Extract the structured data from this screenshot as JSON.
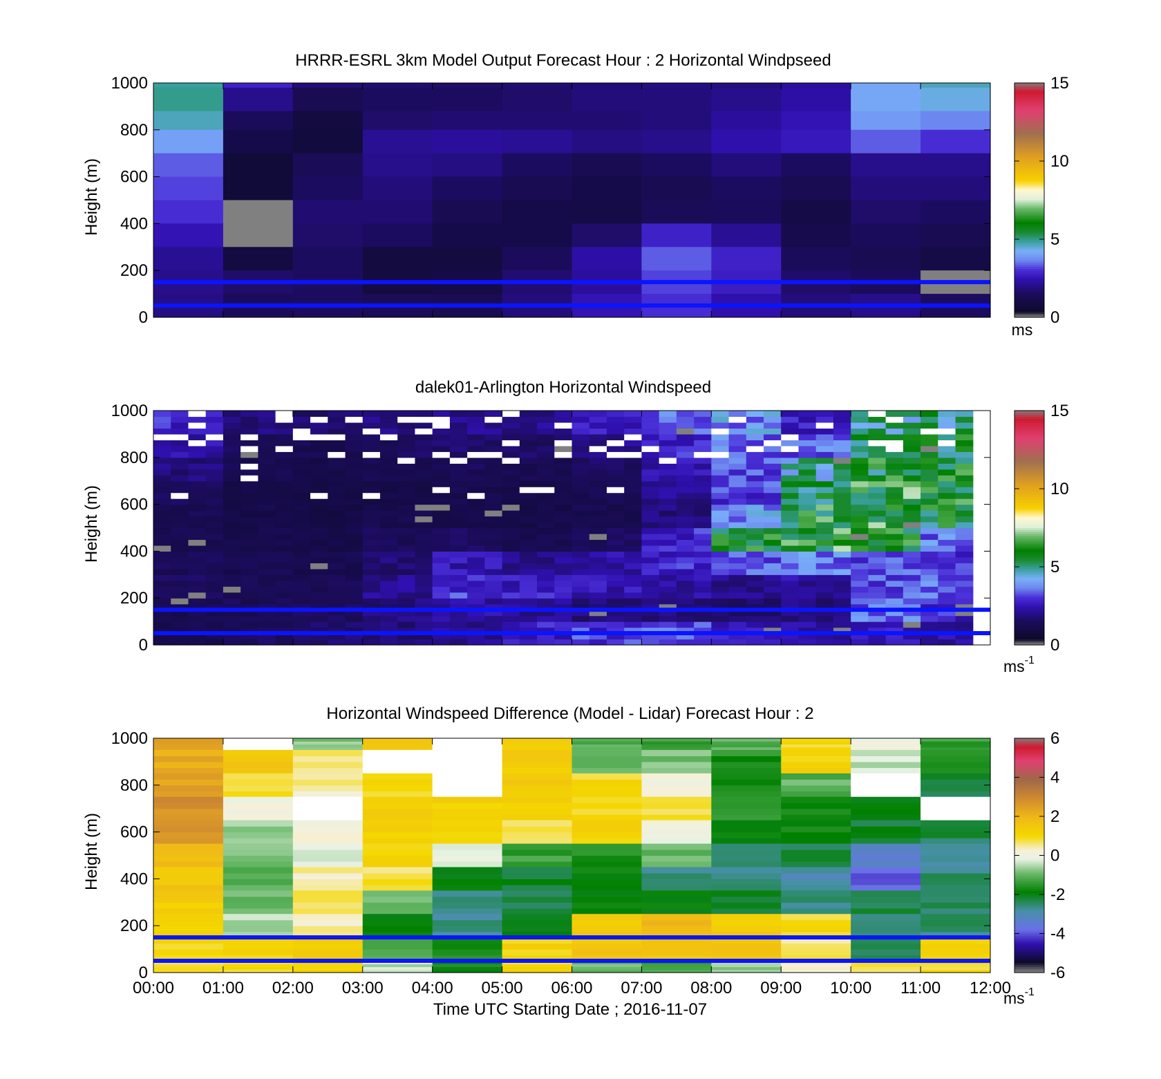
{
  "chart_data": [
    {
      "type": "heatmap",
      "title": "HRRR-ESRL 3km Model Output   Forecast Hour : 2 Horizontal Windpseed",
      "ylabel": "Height (m)",
      "xlabel": "",
      "ylim": [
        0,
        1000
      ],
      "yticks": [
        "0",
        "200",
        "400",
        "600",
        "800",
        "1000"
      ],
      "xlim": [
        0,
        12
      ],
      "colorbar": {
        "range": [
          0,
          15
        ],
        "ticks": [
          "0",
          "5",
          "10",
          "15"
        ],
        "unit": "ms",
        "unit_sup": "",
        "colormap": "speed"
      },
      "reference_lines_m": [
        50,
        150
      ],
      "x_bins": [
        0,
        1,
        2,
        3,
        4,
        5,
        6,
        7,
        8,
        9,
        10,
        11
      ],
      "height_bins_m": [
        [
          980,
          1000
        ],
        [
          880,
          980
        ],
        [
          800,
          880
        ],
        [
          700,
          800
        ],
        [
          600,
          700
        ],
        [
          500,
          600
        ],
        [
          400,
          500
        ],
        [
          300,
          400
        ],
        [
          200,
          300
        ],
        [
          100,
          200
        ],
        [
          0,
          100
        ]
      ],
      "values_ms": [
        [
          4.8,
          2.6,
          1.6,
          1.5,
          1.4,
          1.5,
          1.6,
          1.7,
          1.7,
          2.0,
          4.0,
          4.6
        ],
        [
          4.9,
          1.8,
          1.0,
          1.3,
          1.3,
          1.4,
          1.6,
          1.6,
          1.8,
          2.1,
          4.0,
          4.3
        ],
        [
          4.6,
          1.2,
          0.6,
          1.4,
          1.5,
          1.5,
          1.5,
          1.6,
          2.0,
          2.3,
          3.8,
          3.5
        ],
        [
          3.9,
          0.8,
          0.5,
          1.9,
          2.0,
          1.9,
          1.7,
          1.8,
          2.2,
          2.4,
          3.2,
          2.8
        ],
        [
          3.2,
          0.4,
          1.1,
          1.8,
          1.7,
          1.3,
          1.0,
          1.3,
          1.6,
          1.3,
          1.8,
          1.8
        ],
        [
          3.0,
          0.4,
          1.3,
          1.6,
          1.3,
          1.0,
          0.8,
          1.0,
          1.3,
          1.0,
          1.6,
          1.6
        ],
        [
          2.8,
          null,
          1.5,
          1.5,
          1.0,
          0.8,
          0.7,
          1.1,
          1.2,
          0.7,
          1.4,
          1.3
        ],
        [
          2.3,
          null,
          1.4,
          1.3,
          0.8,
          0.8,
          1.4,
          2.6,
          1.9,
          0.9,
          1.2,
          1.0
        ],
        [
          1.9,
          0.6,
          1.3,
          0.6,
          0.6,
          1.2,
          2.1,
          3.2,
          2.6,
          1.2,
          1.0,
          0.7
        ],
        [
          1.8,
          1.4,
          1.3,
          0.6,
          0.7,
          1.5,
          2.0,
          3.0,
          2.5,
          1.4,
          1.2,
          null
        ],
        [
          1.7,
          1.2,
          1.3,
          1.1,
          1.0,
          1.6,
          2.3,
          2.8,
          2.2,
          1.6,
          1.8,
          1.3
        ]
      ]
    },
    {
      "type": "heatmap",
      "title": "dalek01-Arlington  Horizontal Windspeed",
      "ylabel": "Height (m)",
      "xlabel": "",
      "ylim": [
        0,
        1000
      ],
      "yticks": [
        "0",
        "200",
        "400",
        "600",
        "800",
        "1000"
      ],
      "xlim": [
        0,
        12
      ],
      "colorbar": {
        "range": [
          0,
          15
        ],
        "ticks": [
          "0",
          "5",
          "10",
          "15"
        ],
        "unit": "ms",
        "unit_sup": "-1",
        "colormap": "speed"
      },
      "reference_lines_m": [
        50,
        150
      ],
      "profile_interval_h": 0.25,
      "height_bins_m": [
        [
          900,
          1000
        ],
        [
          800,
          900
        ],
        [
          700,
          800
        ],
        [
          600,
          700
        ],
        [
          500,
          600
        ],
        [
          400,
          500
        ],
        [
          300,
          400
        ],
        [
          200,
          300
        ],
        [
          100,
          200
        ],
        [
          0,
          100
        ]
      ],
      "hourly_speed_ms_approx": [
        [
          2.6,
          1.6,
          1.4,
          1.6,
          1.8,
          1.8,
          2.4,
          3.2,
          3.6,
          2.4,
          4.6,
          5.0
        ],
        [
          2.2,
          1.2,
          1.0,
          1.2,
          1.4,
          1.3,
          1.8,
          2.6,
          3.3,
          3.2,
          5.2,
          5.6
        ],
        [
          1.6,
          1.0,
          0.8,
          1.0,
          1.1,
          1.0,
          1.3,
          2.2,
          3.0,
          4.6,
          5.6,
          5.8
        ],
        [
          1.2,
          0.8,
          0.7,
          0.8,
          0.9,
          0.8,
          1.0,
          1.8,
          2.8,
          5.4,
          6.0,
          5.8
        ],
        [
          1.0,
          0.8,
          0.7,
          0.9,
          0.8,
          0.8,
          0.9,
          1.6,
          3.6,
          5.8,
          6.0,
          5.6
        ],
        [
          1.0,
          0.9,
          0.8,
          1.1,
          1.2,
          1.0,
          1.2,
          2.6,
          5.6,
          6.0,
          5.6,
          3.4
        ],
        [
          1.1,
          1.0,
          0.9,
          1.5,
          2.2,
          1.8,
          2.0,
          2.6,
          3.0,
          3.4,
          3.0,
          2.8
        ],
        [
          1.2,
          1.0,
          1.1,
          1.8,
          2.8,
          2.4,
          2.2,
          2.0,
          1.8,
          2.0,
          3.0,
          3.2
        ],
        [
          1.0,
          1.1,
          1.2,
          1.6,
          2.0,
          1.8,
          1.6,
          1.6,
          1.4,
          1.6,
          3.2,
          2.6
        ],
        [
          0.9,
          1.2,
          1.4,
          1.5,
          1.8,
          2.4,
          2.8,
          3.0,
          2.4,
          2.0,
          2.4,
          2.0
        ]
      ]
    },
    {
      "type": "heatmap",
      "title": "Horizontal Windspeed Difference (Model - Lidar) Forecast Hour : 2",
      "ylabel": "Height (m)",
      "xlabel": "Time UTC  Starting Date ; 2016-11-07",
      "ylim": [
        0,
        1000
      ],
      "yticks": [
        "0",
        "200",
        "400",
        "600",
        "800",
        "1000"
      ],
      "xlim": [
        0,
        12
      ],
      "xticks": [
        "00:00",
        "01:00",
        "02:00",
        "03:00",
        "04:00",
        "05:00",
        "06:00",
        "07:00",
        "08:00",
        "09:00",
        "10:00",
        "11:00",
        "12:00"
      ],
      "colorbar": {
        "range": [
          -6,
          6
        ],
        "ticks": [
          "-6",
          "-4",
          "-2",
          "0",
          "2",
          "4",
          "6"
        ],
        "unit": "ms",
        "unit_sup": "-1",
        "colormap": "diff"
      },
      "reference_lines_m": [
        50,
        150
      ],
      "height_bins_m": [
        [
          950,
          1000
        ],
        [
          850,
          950
        ],
        [
          750,
          850
        ],
        [
          650,
          750
        ],
        [
          550,
          650
        ],
        [
          450,
          550
        ],
        [
          350,
          450
        ],
        [
          250,
          350
        ],
        [
          150,
          250
        ],
        [
          50,
          150
        ],
        [
          0,
          50
        ]
      ],
      "difference_ms_approx": [
        [
          2.5,
          null,
          -0.8,
          1.5,
          null,
          1.5,
          -1.2,
          -1.5,
          -1.2,
          1.0,
          0.0,
          -1.5
        ],
        [
          2.4,
          1.5,
          0.5,
          null,
          null,
          1.5,
          -1.0,
          -1.0,
          -1.8,
          1.2,
          -0.5,
          -1.8
        ],
        [
          2.6,
          1.0,
          0.4,
          1.0,
          null,
          1.4,
          1.0,
          0.2,
          -2.0,
          -1.2,
          null,
          -2.4
        ],
        [
          3.0,
          0.0,
          null,
          1.4,
          1.2,
          1.2,
          1.0,
          0.8,
          -1.4,
          -1.8,
          -2.2,
          null
        ],
        [
          3.0,
          -0.8,
          0.3,
          1.4,
          1.0,
          0.8,
          1.2,
          0.0,
          -2.2,
          -2.0,
          -2.4,
          -2.6
        ],
        [
          2.0,
          -1.0,
          -0.2,
          1.2,
          -0.4,
          -1.5,
          -1.8,
          -1.2,
          -2.6,
          -2.6,
          -3.6,
          -3.0
        ],
        [
          1.6,
          -1.2,
          0.4,
          0.8,
          -2.2,
          -2.4,
          -2.0,
          -2.8,
          -2.8,
          -3.2,
          -4.2,
          -2.8
        ],
        [
          1.4,
          -1.0,
          0.6,
          -1.2,
          -2.8,
          -2.6,
          -2.0,
          -2.0,
          -2.4,
          -2.8,
          -2.6,
          -2.6
        ],
        [
          1.2,
          -0.6,
          0.5,
          -2.0,
          -3.0,
          -2.2,
          1.4,
          2.2,
          1.4,
          1.0,
          -2.8,
          -2.8
        ],
        [
          1.0,
          1.2,
          1.4,
          -1.5,
          -1.8,
          1.2,
          1.6,
          1.8,
          1.8,
          0.6,
          -2.6,
          1.2
        ],
        [
          0.8,
          1.0,
          1.2,
          -0.5,
          -2.0,
          1.0,
          -1.0,
          -1.4,
          -0.8,
          0.4,
          0.8,
          1.0
        ]
      ]
    }
  ],
  "labels": {
    "top_title": "HRRR-ESRL 3km Model Output   Forecast Hour : 2 Horizontal Windpseed",
    "mid_title": "dalek01-Arlington  Horizontal Windspeed",
    "bot_title": "Horizontal Windspeed Difference (Model - Lidar) Forecast Hour : 2",
    "ylabel": "Height (m)",
    "xlabel": "Time UTC  Starting Date ; 2016-11-07",
    "cb_unit_top": "ms",
    "cb_unit_mid": "ms",
    "cb_unit_mid_sup": "-1",
    "cb_unit_bot": "ms",
    "cb_unit_bot_sup": "-1"
  },
  "colors": {
    "reference_line": "#0a14ff",
    "missing": "#808080",
    "speed_colormap_stops": [
      [
        0.0,
        "#808080"
      ],
      [
        0.02,
        "#0c0a28"
      ],
      [
        0.1,
        "#1c0c5e"
      ],
      [
        0.16,
        "#3010b0"
      ],
      [
        0.2,
        "#4a30d8"
      ],
      [
        0.24,
        "#6e88f0"
      ],
      [
        0.28,
        "#78b0f8"
      ],
      [
        0.32,
        "#3aa0a0"
      ],
      [
        0.36,
        "#1a8a30"
      ],
      [
        0.4,
        "#008000"
      ],
      [
        0.46,
        "#68b868"
      ],
      [
        0.5,
        "#dff0da"
      ],
      [
        0.54,
        "#fff8d0"
      ],
      [
        0.58,
        "#f8d000"
      ],
      [
        0.68,
        "#e0a020"
      ],
      [
        0.78,
        "#a07050"
      ],
      [
        0.88,
        "#e04070"
      ],
      [
        0.96,
        "#d01a30"
      ],
      [
        1.0,
        "#808080"
      ]
    ],
    "diff_colormap_stops": [
      [
        0.0,
        "#808080"
      ],
      [
        0.04,
        "#0c0a28"
      ],
      [
        0.12,
        "#3010b0"
      ],
      [
        0.18,
        "#6a70e8"
      ],
      [
        0.26,
        "#4890a8"
      ],
      [
        0.34,
        "#008000"
      ],
      [
        0.42,
        "#6ab86a"
      ],
      [
        0.48,
        "#e8f2e4"
      ],
      [
        0.52,
        "#f6f0d8"
      ],
      [
        0.58,
        "#f4d800"
      ],
      [
        0.66,
        "#f0b818"
      ],
      [
        0.74,
        "#d08a30"
      ],
      [
        0.82,
        "#a06848"
      ],
      [
        0.9,
        "#e04070"
      ],
      [
        0.96,
        "#d01a30"
      ],
      [
        1.0,
        "#808080"
      ]
    ]
  }
}
